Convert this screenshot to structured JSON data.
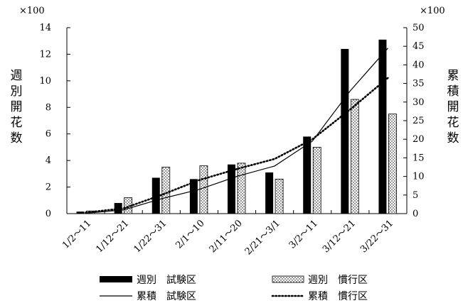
{
  "chart_data": {
    "type": "bar",
    "categories": [
      "1/2～11",
      "1/12～21",
      "1/22～31",
      "2/1～10",
      "2/11～20",
      "2/21～3/1",
      "3/2～11",
      "3/12～21",
      "3/22～31"
    ],
    "left_axis": {
      "multiplier": "×100",
      "label": "週別開花数",
      "ylim": [
        0,
        14
      ],
      "ticks": [
        "0",
        "2",
        "4",
        "6",
        "8",
        "10",
        "12",
        "14"
      ]
    },
    "right_axis": {
      "multiplier": "×100",
      "label": "累積開花数",
      "ylim": [
        0,
        50
      ],
      "ticks": [
        "0",
        "5",
        "10",
        "15",
        "20",
        "25",
        "30",
        "35",
        "40",
        "45",
        "50"
      ]
    },
    "series": [
      {
        "name": "週別　試験区",
        "kind": "bar",
        "style": "solid-black",
        "axis": "left",
        "values": [
          0.15,
          0.8,
          2.7,
          2.6,
          3.7,
          3.1,
          5.8,
          12.4,
          13.1
        ]
      },
      {
        "name": "週別　慣行区",
        "kind": "bar",
        "style": "dotted-pattern",
        "axis": "left",
        "values": [
          0.2,
          1.2,
          3.5,
          3.6,
          3.8,
          2.6,
          5.0,
          8.6,
          7.5
        ]
      },
      {
        "name": "累積　試験区",
        "kind": "line",
        "style": "solid-thin",
        "axis": "right",
        "values": [
          0.1,
          1.0,
          4.0,
          6.5,
          10.0,
          12.8,
          19.5,
          33.0,
          44.5
        ]
      },
      {
        "name": "累積　慣行区",
        "kind": "line",
        "style": "dotted-thick",
        "axis": "right",
        "values": [
          0.3,
          1.4,
          5.0,
          9.0,
          12.0,
          14.7,
          20.0,
          28.0,
          36.5
        ]
      }
    ],
    "grid": false,
    "legend_position": "bottom"
  }
}
